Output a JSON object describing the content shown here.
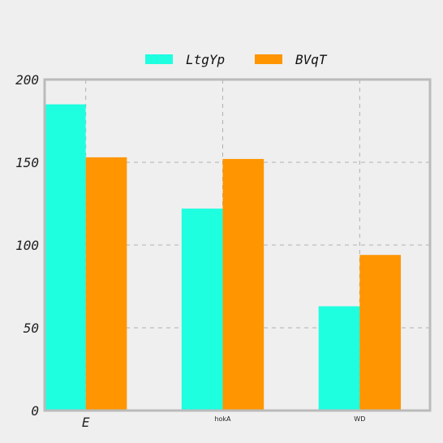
{
  "chart_data": {
    "type": "bar",
    "categories": [
      "E",
      "hokA",
      "WD"
    ],
    "series": [
      {
        "name": "LtgYp",
        "values": [
          185,
          122,
          63
        ],
        "color": "#1effe0"
      },
      {
        "name": "BVqT",
        "values": [
          153,
          152,
          94
        ],
        "color": "#ff9500"
      }
    ],
    "ylim": [
      0,
      200
    ],
    "yticks": [
      0,
      50,
      100,
      150,
      200
    ],
    "grid": true,
    "legend_position": "top-center",
    "background": "#efefef",
    "frame_color": "#bbbbbb"
  }
}
